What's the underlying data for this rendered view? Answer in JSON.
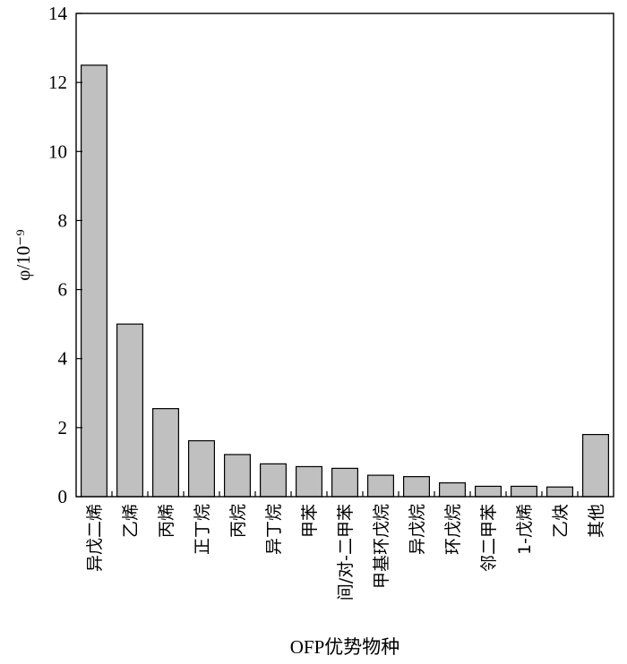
{
  "chart_data": {
    "type": "bar",
    "categories": [
      "异戊二烯",
      "乙烯",
      "丙烯",
      "正丁烷",
      "丙烷",
      "异丁烷",
      "甲苯",
      "间/对-二甲苯",
      "甲基环戊烷",
      "异戊烷",
      "环戊烷",
      "邻二甲苯",
      "1-戊烯",
      "乙炔",
      "其他"
    ],
    "values": [
      12.5,
      5.0,
      2.55,
      1.62,
      1.22,
      0.95,
      0.87,
      0.82,
      0.62,
      0.58,
      0.4,
      0.3,
      0.3,
      0.28,
      1.8
    ],
    "xlabel": "OFP优势物种",
    "ylabel": "φ/10⁻⁹",
    "ylim": [
      0,
      14
    ],
    "yticks": [
      0,
      2,
      4,
      6,
      8,
      10,
      12,
      14
    ],
    "ytick_labels": [
      "0",
      "2",
      "4",
      "6",
      "8",
      "10",
      "12",
      "14"
    ],
    "grid": false,
    "bar_color": "#c0c0c0"
  }
}
